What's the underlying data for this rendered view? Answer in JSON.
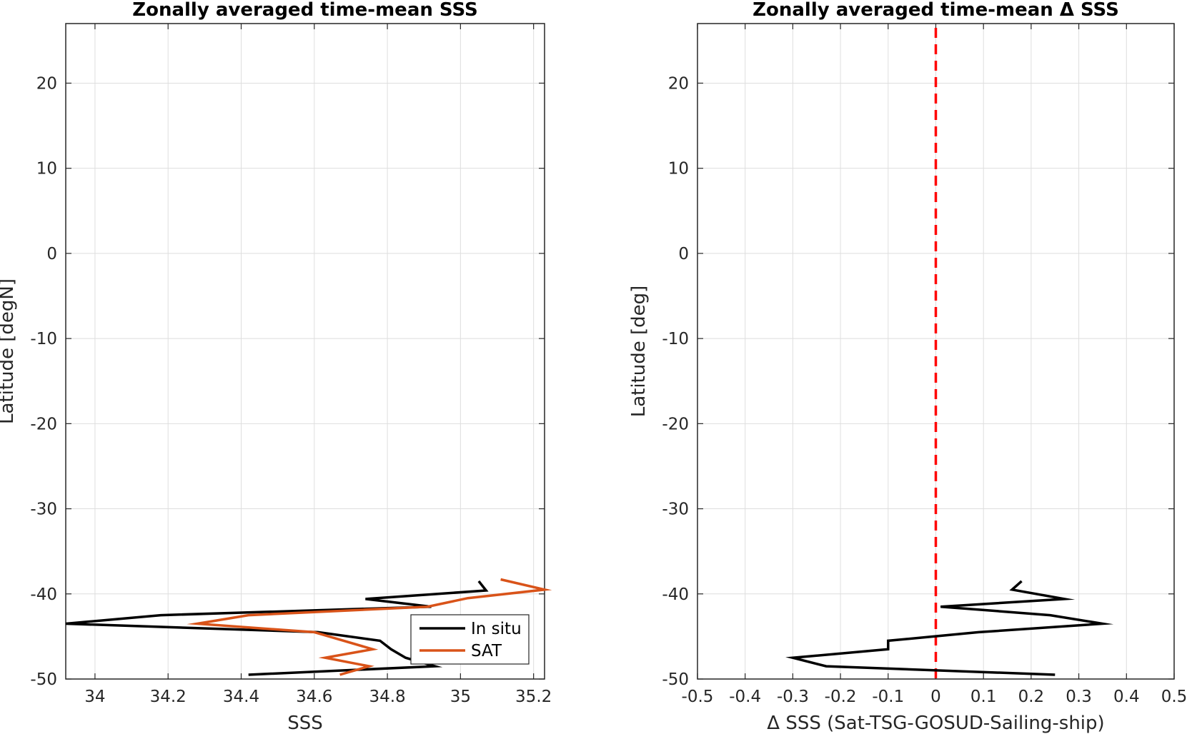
{
  "chart_data": [
    {
      "type": "line",
      "title": "Zonally averaged time-mean SSS",
      "xlabel": "SSS",
      "ylabel": "Latitude [degN]",
      "xlim": [
        33.92,
        35.23
      ],
      "ylim": [
        -50,
        27
      ],
      "xticks": [
        34,
        34.2,
        34.4,
        34.6,
        34.8,
        35,
        35.2
      ],
      "xtick_labels": [
        "34",
        "34.2",
        "34.4",
        "34.6",
        "34.8",
        "35",
        "35.2"
      ],
      "yticks": [
        -50,
        -40,
        -30,
        -20,
        -10,
        0,
        10,
        20
      ],
      "ytick_labels": [
        "-50",
        "-40",
        "-30",
        "-20",
        "-10",
        "0",
        "10",
        "20"
      ],
      "grid": true,
      "legend": {
        "position": "bottom-right",
        "entries": [
          "In situ",
          "SAT"
        ]
      },
      "series": [
        {
          "name": "In situ",
          "color": "#000000",
          "points": [
            [
              35.05,
              -38.5
            ],
            [
              35.07,
              -39.6
            ],
            [
              34.74,
              -40.6
            ],
            [
              34.92,
              -41.5
            ],
            [
              34.18,
              -42.5
            ],
            [
              33.92,
              -43.5
            ],
            [
              34.61,
              -44.5
            ],
            [
              34.78,
              -45.5
            ],
            [
              34.81,
              -46.5
            ],
            [
              34.85,
              -47.5
            ],
            [
              34.93,
              -48.5
            ],
            [
              34.42,
              -49.5
            ]
          ]
        },
        {
          "name": "SAT",
          "color": "#D95319",
          "points": [
            [
              35.11,
              -38.3
            ],
            [
              35.23,
              -39.5
            ],
            [
              35.02,
              -40.5
            ],
            [
              34.91,
              -41.5
            ],
            [
              34.42,
              -42.5
            ],
            [
              34.28,
              -43.5
            ],
            [
              34.6,
              -44.5
            ],
            [
              34.76,
              -46.5
            ],
            [
              34.63,
              -47.5
            ],
            [
              34.75,
              -48.5
            ],
            [
              34.67,
              -49.5
            ]
          ]
        }
      ]
    },
    {
      "type": "line",
      "title": "Zonally averaged time-mean Δ SSS",
      "xlabel": "Δ SSS (Sat-TSG-GOSUD-Sailing-ship)",
      "ylabel": "Latitude [deg]",
      "xlim": [
        -0.5,
        0.5
      ],
      "ylim": [
        -50,
        27
      ],
      "xticks": [
        -0.5,
        -0.4,
        -0.3,
        -0.2,
        -0.1,
        0,
        0.1,
        0.2,
        0.3,
        0.4,
        0.5
      ],
      "xtick_labels": [
        "-0.5",
        "-0.4",
        "-0.3",
        "-0.2",
        "-0.1",
        "0",
        "0.1",
        "0.2",
        "0.3",
        "0.4",
        "0.5"
      ],
      "yticks": [
        -50,
        -40,
        -30,
        -20,
        -10,
        0,
        10,
        20
      ],
      "ytick_labels": [
        "-50",
        "-40",
        "-30",
        "-20",
        "-10",
        "0",
        "10",
        "20"
      ],
      "grid": true,
      "reference_line": {
        "x": 0,
        "color": "#FF0000",
        "style": "dashed"
      },
      "series": [
        {
          "name": "",
          "color": "#000000",
          "points": [
            [
              0.18,
              -38.5
            ],
            [
              0.16,
              -39.5
            ],
            [
              0.27,
              -40.6
            ],
            [
              0.01,
              -41.5
            ],
            [
              0.24,
              -42.5
            ],
            [
              0.35,
              -43.5
            ],
            [
              0.09,
              -44.5
            ],
            [
              -0.1,
              -45.5
            ],
            [
              -0.1,
              -46.5
            ],
            [
              -0.3,
              -47.5
            ],
            [
              -0.23,
              -48.5
            ],
            [
              0.25,
              -49.5
            ]
          ]
        }
      ]
    }
  ]
}
